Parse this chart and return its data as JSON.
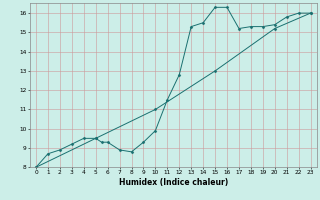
{
  "xlabel": "Humidex (Indice chaleur)",
  "ylabel": "",
  "bg_color": "#cceee8",
  "grid_color": "#bbbbbb",
  "line_color": "#1a7070",
  "xlim": [
    -0.5,
    23.5
  ],
  "ylim": [
    8,
    16.5
  ],
  "x_ticks": [
    0,
    1,
    2,
    3,
    4,
    5,
    6,
    7,
    8,
    9,
    10,
    11,
    12,
    13,
    14,
    15,
    16,
    17,
    18,
    19,
    20,
    21,
    22,
    23
  ],
  "y_ticks": [
    8,
    9,
    10,
    11,
    12,
    13,
    14,
    15,
    16
  ],
  "line1_x": [
    0,
    1,
    2,
    3,
    4,
    5,
    5.5,
    6,
    7,
    8,
    9,
    10,
    11,
    12,
    13,
    14,
    15,
    16,
    17,
    18,
    19,
    20,
    21,
    22,
    23
  ],
  "line1_y": [
    8.0,
    8.7,
    8.9,
    9.2,
    9.5,
    9.5,
    9.3,
    9.3,
    8.9,
    8.8,
    9.3,
    9.9,
    11.5,
    12.8,
    15.3,
    15.5,
    16.3,
    16.3,
    15.2,
    15.3,
    15.3,
    15.4,
    15.8,
    16.0,
    16.0
  ],
  "line2_x": [
    0,
    5,
    10,
    15,
    20,
    23
  ],
  "line2_y": [
    8.0,
    9.5,
    11.0,
    13.0,
    15.2,
    16.0
  ]
}
